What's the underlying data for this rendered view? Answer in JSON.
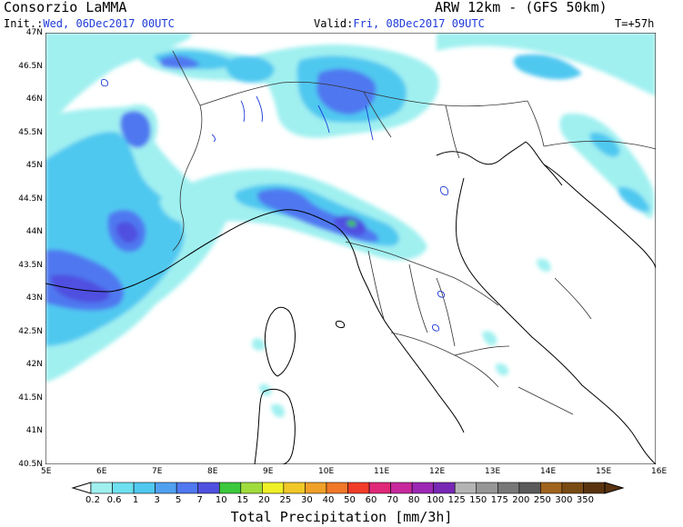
{
  "header": {
    "title": "Consorzio LaMMA",
    "model": "ARW 12km - (GFS 50km)",
    "init_label": "Init.:",
    "init_value": "Wed, 06Dec2017 00UTC",
    "valid_label": "Valid:",
    "valid_value": "Fri, 08Dec2017 09UTC",
    "lead": "T=+57h"
  },
  "axes": {
    "lat_labels": [
      "47N",
      "46.5N",
      "46N",
      "45.5N",
      "45N",
      "44.5N",
      "44N",
      "43.5N",
      "43N",
      "42.5N",
      "42N",
      "41.5N",
      "41N",
      "40.5N"
    ],
    "lon_labels": [
      "5E",
      "6E",
      "7E",
      "8E",
      "9E",
      "10E",
      "11E",
      "12E",
      "13E",
      "14E",
      "15E",
      "16E"
    ]
  },
  "legend": {
    "title": "Total Precipitation [mm/3h]",
    "levels": [
      "0.2",
      "0.6",
      "1",
      "3",
      "5",
      "7",
      "10",
      "15",
      "20",
      "25",
      "30",
      "40",
      "50",
      "60",
      "70",
      "80",
      "100",
      "125",
      "150",
      "175",
      "200",
      "250",
      "300",
      "350"
    ],
    "colors": [
      "#a0f0f0",
      "#6ee0f0",
      "#50c8f0",
      "#50a0f0",
      "#5078f0",
      "#5050e0",
      "#3cc83c",
      "#a0dc3c",
      "#f0f028",
      "#f0c828",
      "#f0a028",
      "#f07828",
      "#f03c28",
      "#e02878",
      "#c8289c",
      "#9c28b4",
      "#7828b4",
      "#b4b4b4",
      "#969696",
      "#787878",
      "#5a5a5a",
      "#a0641e",
      "#7a4a14",
      "#5a3410"
    ]
  },
  "map": {
    "precip_palette": {
      "light": "#a0f0f0",
      "mid": "#50c8f0",
      "strong": "#5078f0",
      "heavy": "#5050e0",
      "peak": "#3cc83c"
    }
  }
}
